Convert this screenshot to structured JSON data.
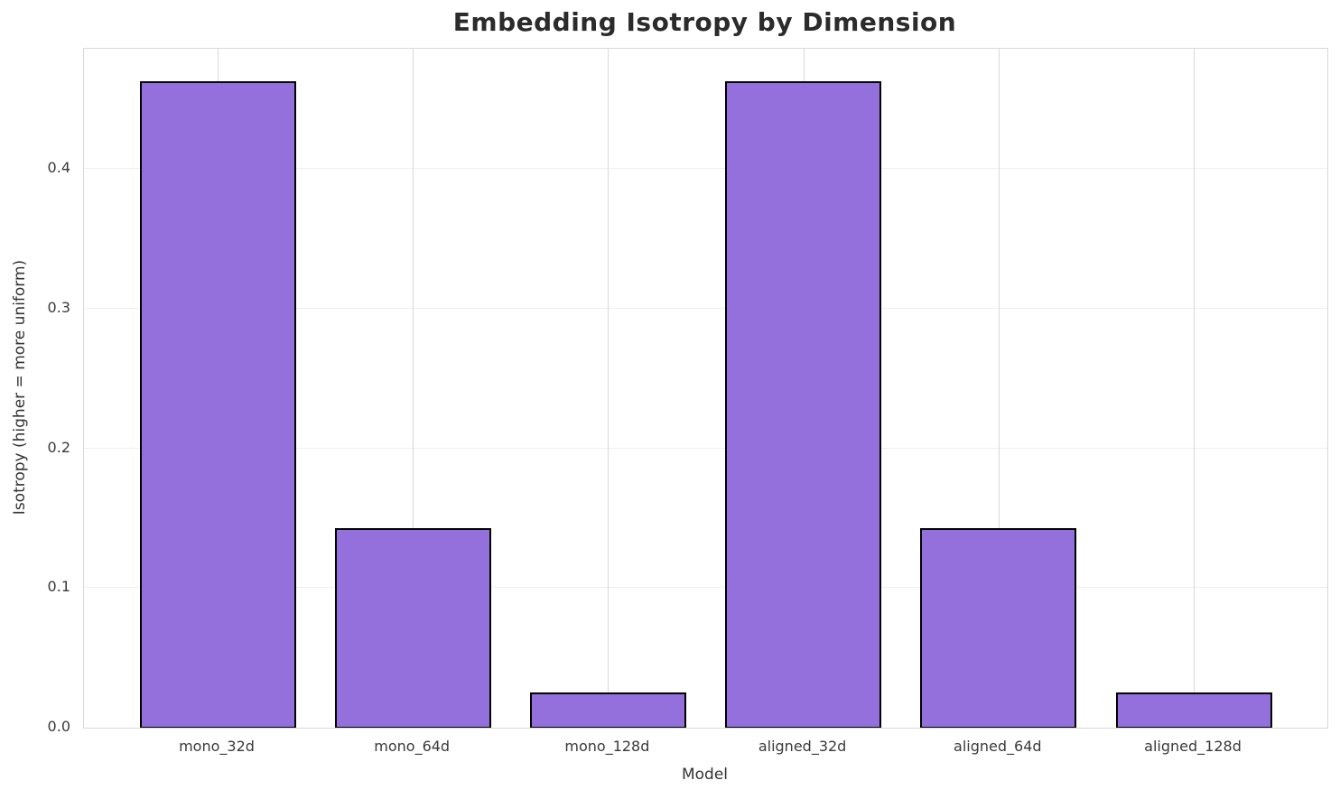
{
  "chart_data": {
    "type": "bar",
    "title": "Embedding Isotropy by Dimension",
    "xlabel": "Model",
    "ylabel": "Isotropy (higher = more uniform)",
    "categories": [
      "mono_32d",
      "mono_64d",
      "mono_128d",
      "aligned_32d",
      "aligned_64d",
      "aligned_128d"
    ],
    "values": [
      0.463,
      0.143,
      0.025,
      0.463,
      0.143,
      0.025
    ],
    "ylim": [
      0,
      0.486
    ],
    "yticks": [
      0.0,
      0.1,
      0.2,
      0.3,
      0.4
    ],
    "grid": true,
    "legend_position": "none",
    "bar_color": "#9370DB",
    "bar_edge_color": "#000000"
  }
}
